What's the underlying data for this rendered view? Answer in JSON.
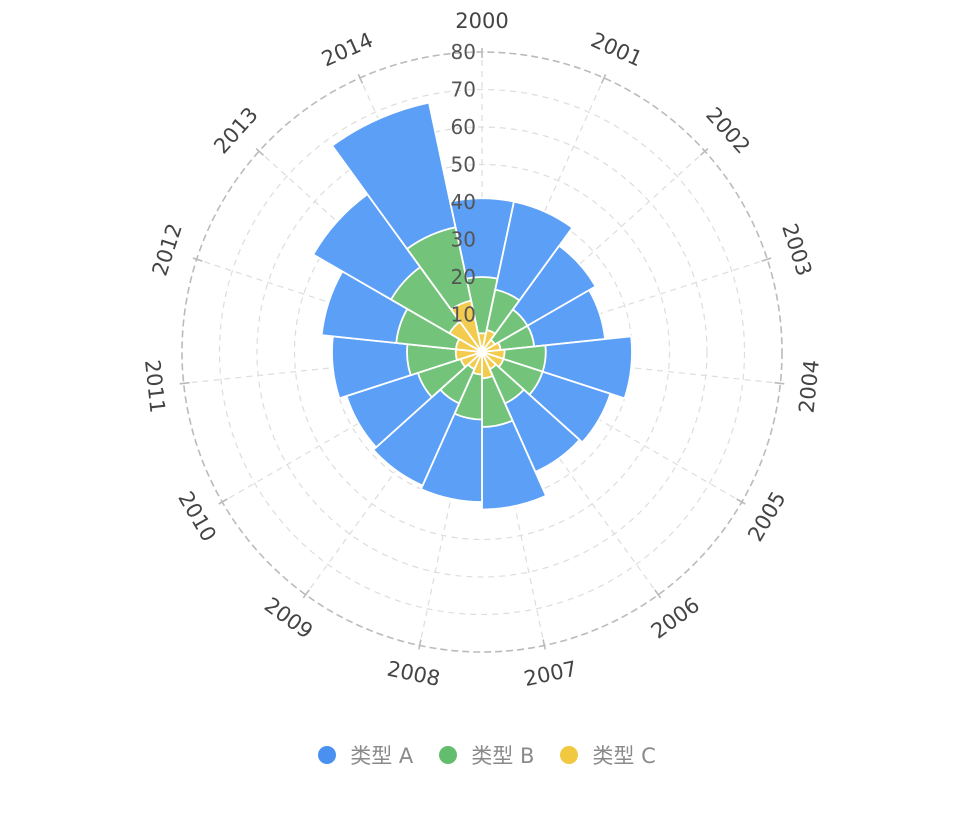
{
  "chart_data": {
    "type": "bar",
    "subtype": "polar-stacked",
    "categories": [
      "2000",
      "2001",
      "2002",
      "2003",
      "2004",
      "2005",
      "2006",
      "2007",
      "2008",
      "2009",
      "2010",
      "2011",
      "2012",
      "2013",
      "2014"
    ],
    "series": [
      {
        "name": "类型 A",
        "color": "#5b9ff6",
        "values": [
          21,
          24,
          21,
          19,
          23,
          19,
          20,
          22,
          22,
          24,
          20,
          20,
          20,
          24,
          34
        ]
      },
      {
        "name": "类型 B",
        "color": "#73c47a",
        "values": [
          15,
          11,
          10,
          9,
          11,
          11,
          10,
          13,
          12,
          10,
          12,
          13,
          16,
          18,
          20
        ]
      },
      {
        "name": "类型 C",
        "color": "#f3cb4e",
        "values": [
          5,
          6,
          4,
          5,
          6,
          6,
          5,
          7,
          6,
          5,
          6,
          7,
          7,
          10,
          14
        ]
      }
    ],
    "radial_ticks": [
      "10",
      "20",
      "30",
      "40",
      "50",
      "60",
      "70",
      "80"
    ],
    "rlim": [
      0,
      80
    ],
    "grid": true,
    "legend_position": "bottom"
  }
}
